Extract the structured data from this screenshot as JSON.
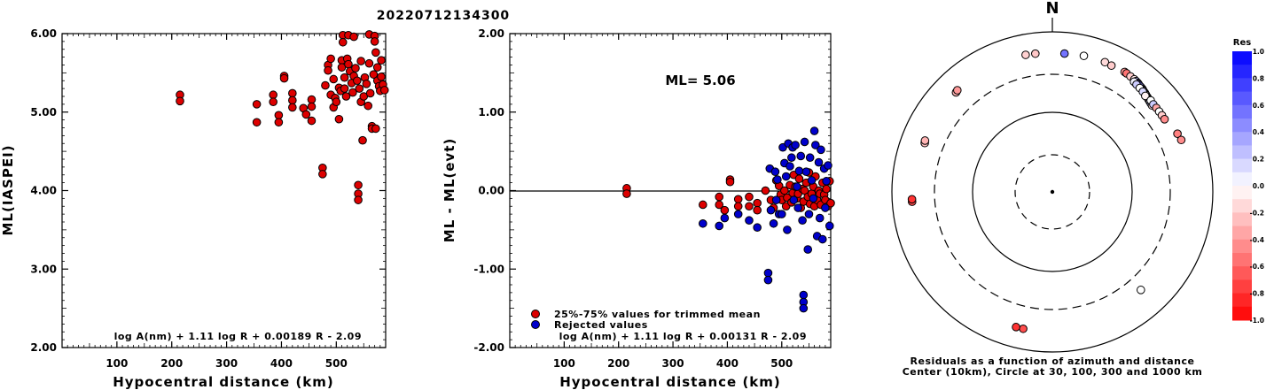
{
  "title": "20220712134300",
  "chart_data": [
    {
      "type": "scatter",
      "xlabel": "Hypocentral distance (km)",
      "ylabel": "ML(IASPEI)",
      "xlim": [
        0,
        590
      ],
      "ylim": [
        2.0,
        6.0
      ],
      "xticks": [
        "100",
        "200",
        "300",
        "400",
        "500"
      ],
      "yticks": [
        "2.00",
        "3.00",
        "4.00",
        "5.00",
        "6.00"
      ],
      "formula": "log A(nm) + 1.11 log R + 0.00189 R - 2.09",
      "series": [
        {
          "color": "#dd0000",
          "points": [
            [
              215,
              5.22
            ],
            [
              215,
              5.14
            ],
            [
              355,
              5.1
            ],
            [
              355,
              4.87
            ],
            [
              385,
              5.22
            ],
            [
              385,
              5.13
            ],
            [
              395,
              4.96
            ],
            [
              395,
              4.87
            ],
            [
              405,
              5.46
            ],
            [
              405,
              5.43
            ],
            [
              420,
              5.24
            ],
            [
              420,
              5.15
            ],
            [
              420,
              5.06
            ],
            [
              440,
              5.05
            ],
            [
              445,
              4.97
            ],
            [
              455,
              5.16
            ],
            [
              455,
              5.07
            ],
            [
              455,
              4.89
            ],
            [
              475,
              4.29
            ],
            [
              475,
              4.21
            ],
            [
              480,
              5.34
            ],
            [
              485,
              5.6
            ],
            [
              485,
              5.53
            ],
            [
              490,
              5.68
            ],
            [
              490,
              5.22
            ],
            [
              495,
              5.42
            ],
            [
              495,
              5.06
            ],
            [
              498,
              5.18
            ],
            [
              500,
              5.13
            ],
            [
              505,
              5.31
            ],
            [
              505,
              4.91
            ],
            [
              508,
              5.27
            ],
            [
              510,
              5.66
            ],
            [
              510,
              5.57
            ],
            [
              512,
              5.98
            ],
            [
              512,
              5.89
            ],
            [
              515,
              5.44
            ],
            [
              515,
              5.3
            ],
            [
              518,
              5.2
            ],
            [
              520,
              5.68
            ],
            [
              522,
              5.98
            ],
            [
              522,
              5.61
            ],
            [
              525,
              5.52
            ],
            [
              528,
              5.37
            ],
            [
              530,
              5.25
            ],
            [
              532,
              5.96
            ],
            [
              532,
              5.46
            ],
            [
              535,
              5.56
            ],
            [
              538,
              5.4
            ],
            [
              540,
              4.07
            ],
            [
              540,
              3.96
            ],
            [
              540,
              3.88
            ],
            [
              542,
              5.3
            ],
            [
              545,
              5.65
            ],
            [
              545,
              5.13
            ],
            [
              548,
              4.64
            ],
            [
              550,
              5.2
            ],
            [
              552,
              5.44
            ],
            [
              555,
              5.36
            ],
            [
              558,
              5.08
            ],
            [
              560,
              5.99
            ],
            [
              560,
              5.62
            ],
            [
              562,
              5.24
            ],
            [
              565,
              4.82
            ],
            [
              565,
              4.79
            ],
            [
              568,
              5.48
            ],
            [
              570,
              5.97
            ],
            [
              570,
              5.9
            ],
            [
              572,
              5.76
            ],
            [
              572,
              4.79
            ],
            [
              575,
              5.57
            ],
            [
              575,
              5.4
            ],
            [
              578,
              5.33
            ],
            [
              580,
              5.27
            ],
            [
              582,
              5.66
            ],
            [
              582,
              5.45
            ],
            [
              585,
              5.35
            ],
            [
              588,
              5.28
            ]
          ]
        }
      ]
    },
    {
      "type": "scatter",
      "xlabel": "Hypocentral distance (km)",
      "ylabel": "ML - ML(evt)",
      "xlim": [
        0,
        590
      ],
      "ylim": [
        -2.0,
        2.0
      ],
      "xticks": [
        "100",
        "200",
        "300",
        "400",
        "500"
      ],
      "yticks": [
        "-2.00",
        "-1.00",
        "0.00",
        "1.00",
        "2.00"
      ],
      "ml_label": "ML= 5.06",
      "formula": "log A(nm) + 1.11 log R + 0.00131 R - 2.09",
      "series": [
        {
          "name": "25%-75% values for trimmed mean",
          "color": "#dd0000",
          "points": [
            [
              215,
              0.03
            ],
            [
              215,
              -0.04
            ],
            [
              355,
              -0.18
            ],
            [
              385,
              -0.08
            ],
            [
              385,
              -0.18
            ],
            [
              395,
              -0.25
            ],
            [
              405,
              0.14
            ],
            [
              405,
              0.11
            ],
            [
              420,
              -0.11
            ],
            [
              420,
              -0.2
            ],
            [
              440,
              -0.08
            ],
            [
              440,
              -0.2
            ],
            [
              455,
              -0.16
            ],
            [
              455,
              -0.25
            ],
            [
              470,
              0.0
            ],
            [
              480,
              -0.12
            ],
            [
              485,
              -0.22
            ],
            [
              490,
              0.13
            ],
            [
              495,
              0.06
            ],
            [
              498,
              -0.05
            ],
            [
              500,
              -0.12
            ],
            [
              505,
              0.0
            ],
            [
              508,
              -0.2
            ],
            [
              510,
              -0.09
            ],
            [
              515,
              0.07
            ],
            [
              518,
              -0.15
            ],
            [
              520,
              -0.03
            ],
            [
              522,
              0.2
            ],
            [
              525,
              0.05
            ],
            [
              528,
              -0.1
            ],
            [
              530,
              -0.04
            ],
            [
              532,
              0.15
            ],
            [
              535,
              -0.22
            ],
            [
              538,
              0.02
            ],
            [
              540,
              -0.14
            ],
            [
              542,
              0.0
            ],
            [
              545,
              0.1
            ],
            [
              548,
              -0.08
            ],
            [
              550,
              0.23
            ],
            [
              552,
              -0.17
            ],
            [
              555,
              -0.04
            ],
            [
              558,
              0.05
            ],
            [
              560,
              -0.2
            ],
            [
              562,
              0.18
            ],
            [
              565,
              -0.12
            ],
            [
              568,
              0.0
            ],
            [
              570,
              -0.04
            ],
            [
              572,
              -0.18
            ],
            [
              575,
              0.1
            ],
            [
              578,
              -0.05
            ],
            [
              580,
              -0.12
            ],
            [
              582,
              0.02
            ],
            [
              585,
              -0.2
            ],
            [
              588,
              0.12
            ],
            [
              590,
              -0.16
            ]
          ]
        },
        {
          "name": "Rejected values",
          "color": "#0000cc",
          "points": [
            [
              355,
              -0.42
            ],
            [
              385,
              -0.45
            ],
            [
              395,
              -0.35
            ],
            [
              420,
              -0.3
            ],
            [
              440,
              -0.38
            ],
            [
              455,
              -0.47
            ],
            [
              475,
              -1.05
            ],
            [
              475,
              -1.14
            ],
            [
              478,
              0.28
            ],
            [
              480,
              -0.25
            ],
            [
              485,
              -0.42
            ],
            [
              488,
              0.24
            ],
            [
              490,
              -0.12
            ],
            [
              492,
              0.14
            ],
            [
              495,
              -0.3
            ],
            [
              500,
              -0.3
            ],
            [
              502,
              0.55
            ],
            [
              505,
              0.35
            ],
            [
              508,
              0.18
            ],
            [
              510,
              -0.5
            ],
            [
              512,
              0.6
            ],
            [
              515,
              0.31
            ],
            [
              518,
              0.42
            ],
            [
              520,
              0.55
            ],
            [
              522,
              -0.12
            ],
            [
              525,
              0.58
            ],
            [
              528,
              0.05
            ],
            [
              530,
              -0.22
            ],
            [
              532,
              0.25
            ],
            [
              535,
              0.44
            ],
            [
              538,
              -0.38
            ],
            [
              540,
              -1.33
            ],
            [
              540,
              -1.42
            ],
            [
              540,
              -1.5
            ],
            [
              542,
              0.62
            ],
            [
              545,
              0.24
            ],
            [
              548,
              -0.75
            ],
            [
              550,
              -0.3
            ],
            [
              552,
              0.42
            ],
            [
              555,
              0.13
            ],
            [
              558,
              -0.1
            ],
            [
              560,
              0.76
            ],
            [
              562,
              0.58
            ],
            [
              565,
              -0.58
            ],
            [
              568,
              0.36
            ],
            [
              570,
              -0.35
            ],
            [
              572,
              0.52
            ],
            [
              575,
              -0.62
            ],
            [
              578,
              0.28
            ],
            [
              580,
              -0.22
            ],
            [
              582,
              0.12
            ],
            [
              585,
              0.32
            ],
            [
              588,
              -0.45
            ]
          ]
        }
      ]
    }
  ],
  "polar": {
    "north_label": "N",
    "caption_line1": "Residuals as a function of azimuth and distance",
    "caption_line2": "Center (10km), Circle at 30, 100, 300 and 1000 km",
    "colorbar_title": "Res",
    "colorbar_ticks": [
      "1.0",
      "0.8",
      "0.6",
      "0.4",
      "0.2",
      "0.0",
      "-0.2",
      "-0.4",
      "-0.6",
      "-0.8",
      "-1.0"
    ],
    "stations": [
      {
        "az": 349,
        "dist": 560,
        "res": -0.18
      },
      {
        "az": 353,
        "dist": 555,
        "res": -0.22
      },
      {
        "az": 5,
        "dist": 548,
        "res": 0.55
      },
      {
        "az": 13,
        "dist": 560,
        "res": 0.0
      },
      {
        "az": 22,
        "dist": 565,
        "res": -0.15
      },
      {
        "az": 25,
        "dist": 556,
        "res": -0.2
      },
      {
        "az": 31,
        "dist": 565,
        "res": -0.4
      },
      {
        "az": 32,
        "dist": 562,
        "res": -0.55
      },
      {
        "az": 34,
        "dist": 555,
        "res": -0.2
      },
      {
        "az": 36,
        "dist": 552,
        "res": -0.1
      },
      {
        "az": 37,
        "dist": 546,
        "res": 0.3
      },
      {
        "az": 38,
        "dist": 540,
        "res": 0.5
      },
      {
        "az": 38.5,
        "dist": 534,
        "res": 0.65
      },
      {
        "az": 39,
        "dist": 528,
        "res": 0.6
      },
      {
        "az": 40,
        "dist": 522,
        "res": 0.45
      },
      {
        "az": 41,
        "dist": 516,
        "res": 0.6
      },
      {
        "az": 41.5,
        "dist": 510,
        "res": 0.4
      },
      {
        "az": 42,
        "dist": 503,
        "res": 0.2
      },
      {
        "az": 43,
        "dist": 497,
        "res": 0.35
      },
      {
        "az": 43.5,
        "dist": 491,
        "res": 0.1
      },
      {
        "az": 44,
        "dist": 485,
        "res": 0.0
      },
      {
        "az": 45,
        "dist": 478,
        "res": 0.25
      },
      {
        "az": 45.5,
        "dist": 472,
        "res": 0.15
      },
      {
        "az": 46,
        "dist": 466,
        "res": -0.15
      },
      {
        "az": 47,
        "dist": 460,
        "res": 0.1
      },
      {
        "az": 48,
        "dist": 454,
        "res": 0.3
      },
      {
        "az": 49,
        "dist": 448,
        "res": -0.1
      },
      {
        "az": 36.5,
        "dist": 520,
        "res": 0.05
      },
      {
        "az": 38,
        "dist": 510,
        "res": 0.2
      },
      {
        "az": 40,
        "dist": 500,
        "res": 0.0
      },
      {
        "az": 42,
        "dist": 490,
        "res": 0.15
      },
      {
        "az": 44,
        "dist": 470,
        "res": -0.05
      },
      {
        "az": 47,
        "dist": 480,
        "res": 0.0
      },
      {
        "az": 49,
        "dist": 470,
        "res": 0.2
      },
      {
        "az": 51,
        "dist": 470,
        "res": -0.35
      },
      {
        "az": 53,
        "dist": 470,
        "res": 0.0
      },
      {
        "az": 55,
        "dist": 470,
        "res": -0.2
      },
      {
        "az": 57,
        "dist": 470,
        "res": -0.45
      },
      {
        "az": 65,
        "dist": 530,
        "res": -0.5
      },
      {
        "az": 68,
        "dist": 545,
        "res": -0.45
      },
      {
        "az": 138,
        "dist": 450,
        "res": 0.0
      },
      {
        "az": 192,
        "dist": 565,
        "res": -0.7
      },
      {
        "az": 195,
        "dist": 565,
        "res": -0.8
      },
      {
        "az": 266,
        "dist": 570,
        "res": -0.7
      },
      {
        "az": 267,
        "dist": 570,
        "res": -0.8
      },
      {
        "az": 291,
        "dist": 510,
        "res": -0.25
      },
      {
        "az": 292,
        "dist": 520,
        "res": -0.3
      },
      {
        "az": 316,
        "dist": 540,
        "res": -0.3
      },
      {
        "az": 317,
        "dist": 550,
        "res": -0.4
      }
    ]
  }
}
